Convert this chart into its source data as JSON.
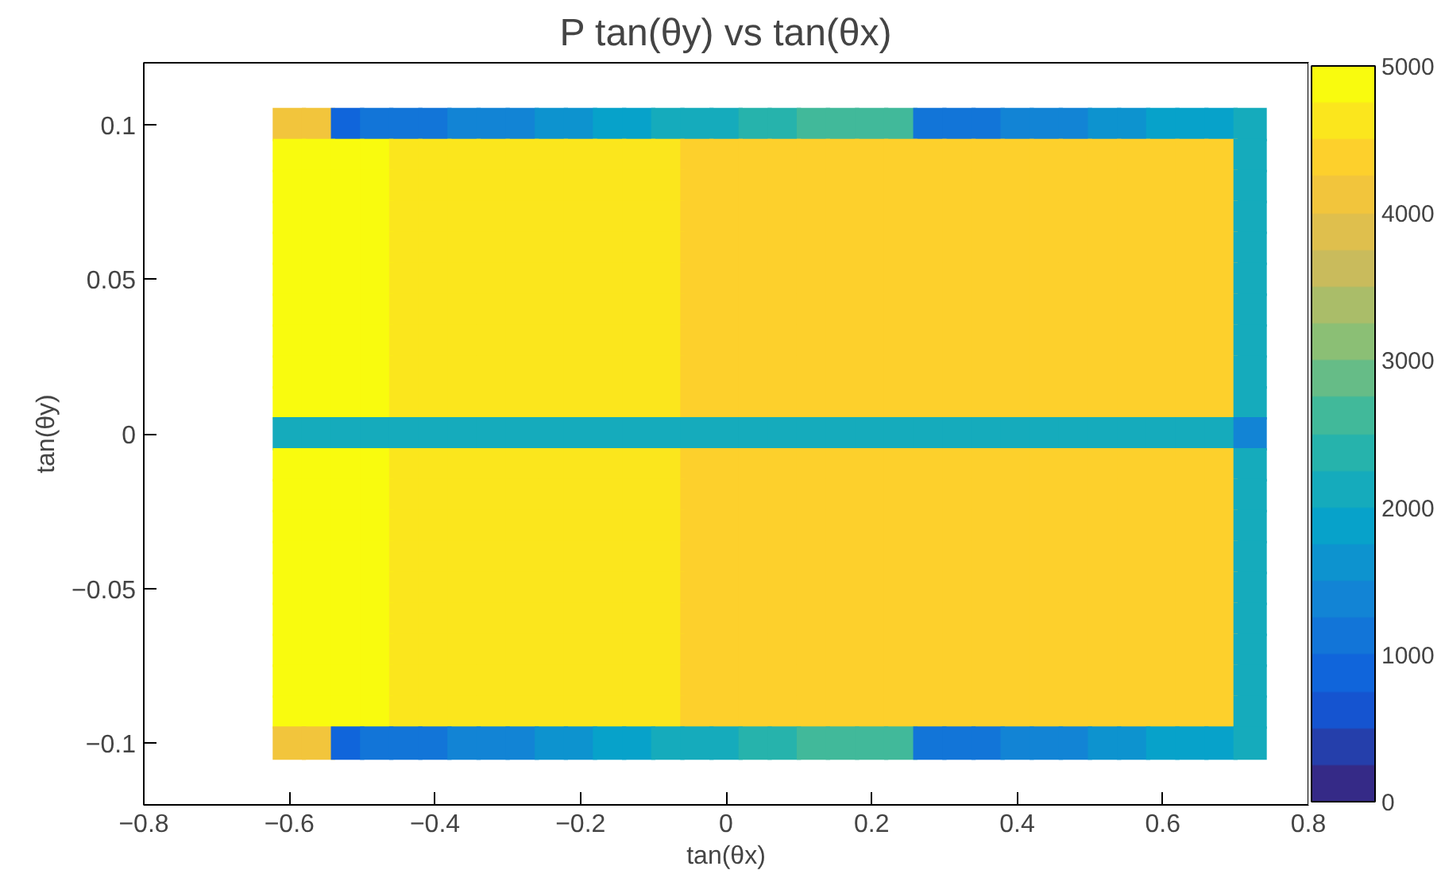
{
  "chart_data": {
    "type": "scatter",
    "marker": "square",
    "title": "P tan(θy) vs tan(θx)",
    "xlabel": "tan(θx)",
    "ylabel": "tan(θy)",
    "xlim": [
      -0.8,
      0.8
    ],
    "ylim": [
      -0.12,
      0.12
    ],
    "xticks": [
      {
        "value": -0.8,
        "label": "−0.8"
      },
      {
        "value": -0.6,
        "label": "−0.6"
      },
      {
        "value": -0.4,
        "label": "−0.4"
      },
      {
        "value": -0.2,
        "label": "−0.2"
      },
      0,
      0.2,
      0.4,
      0.6,
      0.8
    ],
    "yticks": [
      {
        "value": -0.1,
        "label": "−0.1"
      },
      {
        "value": -0.05,
        "label": "−0.05"
      },
      0,
      0.05,
      0.1
    ],
    "clim": [
      0,
      5000
    ],
    "cticks": [
      0,
      1000,
      2000,
      3000,
      4000,
      5000
    ],
    "grid": false,
    "x": [
      -0.6,
      -0.56,
      -0.52,
      -0.48,
      -0.44,
      -0.4,
      -0.36,
      -0.32,
      -0.28,
      -0.24,
      -0.2,
      -0.16,
      -0.12,
      -0.08,
      -0.04,
      0,
      0.04,
      0.08,
      0.12,
      0.16,
      0.2,
      0.24,
      0.28,
      0.32,
      0.36,
      0.4,
      0.44,
      0.48,
      0.52,
      0.56,
      0.6,
      0.64,
      0.68,
      0.72,
      -0.6,
      -0.56,
      -0.52,
      -0.48,
      -0.44,
      -0.4,
      -0.36,
      -0.32,
      -0.28,
      -0.24,
      -0.2,
      -0.16,
      -0.12,
      -0.08,
      -0.04,
      0,
      0.04,
      0.08,
      0.12,
      0.16,
      0.2,
      0.24,
      0.28,
      0.32,
      0.36,
      0.4,
      0.44,
      0.48,
      0.52,
      0.56,
      0.6,
      0.64,
      0.68,
      0.72,
      -0.6,
      -0.56,
      -0.52,
      -0.48,
      -0.44,
      -0.4,
      -0.36,
      -0.32,
      -0.28,
      -0.24,
      -0.2,
      -0.16,
      -0.12,
      -0.08,
      -0.04,
      0,
      0.04,
      0.08,
      0.12,
      0.16,
      0.2,
      0.24,
      0.28,
      0.32,
      0.36,
      0.4,
      0.44,
      0.48,
      0.52,
      0.56,
      0.6,
      0.64,
      0.68,
      0.72,
      -0.6,
      -0.56,
      -0.52,
      -0.48,
      -0.44,
      -0.4,
      -0.36,
      -0.32,
      -0.28,
      -0.24,
      -0.2,
      -0.16,
      -0.12,
      -0.08,
      -0.04,
      0,
      0.04,
      0.08,
      0.12,
      0.16,
      0.2,
      0.24,
      0.28,
      0.32,
      0.36,
      0.4,
      0.44,
      0.48,
      0.52,
      0.56,
      0.6,
      0.64,
      0.68,
      0.72,
      -0.6,
      -0.56,
      -0.52,
      -0.48,
      -0.44,
      -0.4,
      -0.36,
      -0.32,
      -0.28,
      -0.24,
      -0.2,
      -0.16,
      -0.12,
      -0.08,
      -0.04,
      0,
      0.04,
      0.08,
      0.12,
      0.16,
      0.2,
      0.24,
      0.28,
      0.32,
      0.36,
      0.4,
      0.44,
      0.48,
      0.52,
      0.56,
      0.6,
      0.64,
      0.68,
      0.72,
      -0.6,
      -0.56,
      -0.52,
      -0.48,
      -0.44,
      -0.4,
      -0.36,
      -0.32,
      -0.28,
      -0.24,
      -0.2,
      -0.16,
      -0.12,
      -0.08,
      -0.04,
      0,
      0.04,
      0.08,
      0.12,
      0.16,
      0.2,
      0.24,
      0.28,
      0.32,
      0.36,
      0.4,
      0.44,
      0.48,
      0.52,
      0.56,
      0.6,
      0.64,
      0.68,
      0.72,
      -0.6,
      -0.56,
      -0.52,
      -0.48,
      -0.44,
      -0.4,
      -0.36,
      -0.32,
      -0.28,
      -0.24,
      -0.2,
      -0.16,
      -0.12,
      -0.08,
      -0.04,
      0,
      0.04,
      0.08,
      0.12,
      0.16,
      0.2,
      0.24,
      0.28,
      0.32,
      0.36,
      0.4,
      0.44,
      0.48,
      0.52,
      0.56,
      0.6,
      0.64,
      0.68,
      0.72,
      -0.6,
      -0.56,
      -0.52,
      -0.48,
      -0.44,
      -0.4,
      -0.36,
      -0.32,
      -0.28,
      -0.24,
      -0.2,
      -0.16,
      -0.12,
      -0.08,
      -0.04,
      0,
      0.04,
      0.08,
      0.12,
      0.16,
      0.2,
      0.24,
      0.28,
      0.32,
      0.36,
      0.4,
      0.44,
      0.48,
      0.52,
      0.56,
      0.6,
      0.64,
      0.68,
      0.72,
      -0.6,
      -0.56,
      -0.52,
      -0.48,
      -0.44,
      -0.4,
      -0.36,
      -0.32,
      -0.28,
      -0.24,
      -0.2,
      -0.16,
      -0.12,
      -0.08,
      -0.04,
      0,
      0.04,
      0.08,
      0.12,
      0.16,
      0.2,
      0.24,
      0.28,
      0.32,
      0.36,
      0.4,
      0.44,
      0.48,
      0.52,
      0.56,
      0.6,
      0.64,
      0.68,
      0.72,
      -0.6,
      -0.56,
      -0.52,
      -0.48,
      -0.44,
      -0.4,
      -0.36,
      -0.32,
      -0.28,
      -0.24,
      -0.2,
      -0.16,
      -0.12,
      -0.08,
      -0.04,
      0,
      0.04,
      0.08,
      0.12,
      0.16,
      0.2,
      0.24,
      0.28,
      0.32,
      0.36,
      0.4,
      0.44,
      0.48,
      0.52,
      0.56,
      0.6,
      0.64,
      0.68,
      0.72,
      -0.6,
      -0.56,
      -0.52,
      -0.48,
      -0.44,
      -0.4,
      -0.36,
      -0.32,
      -0.28,
      -0.24,
      -0.2,
      -0.16,
      -0.12,
      -0.08,
      -0.04,
      0,
      0.04,
      0.08,
      0.12,
      0.16,
      0.2,
      0.24,
      0.28,
      0.32,
      0.36,
      0.4,
      0.44,
      0.48,
      0.52,
      0.56,
      0.6,
      0.64,
      0.68,
      0.72,
      -0.6,
      -0.56,
      -0.52,
      -0.48,
      -0.44,
      -0.4,
      -0.36,
      -0.32,
      -0.28,
      -0.24,
      -0.2,
      -0.16,
      -0.12,
      -0.08,
      -0.04,
      0,
      0.04,
      0.08,
      0.12,
      0.16,
      0.2,
      0.24,
      0.28,
      0.32,
      0.36,
      0.4,
      0.44,
      0.48,
      0.52,
      0.56,
      0.6,
      0.64,
      0.68,
      0.72,
      -0.6,
      -0.56,
      -0.52,
      -0.48,
      -0.44,
      -0.4,
      -0.36,
      -0.32,
      -0.28,
      -0.24,
      -0.2,
      -0.16,
      -0.12,
      -0.08,
      -0.04,
      0,
      0.04,
      0.08,
      0.12,
      0.16,
      0.2,
      0.24,
      0.28,
      0.32,
      0.36,
      0.4,
      0.44,
      0.48,
      0.52,
      0.56,
      0.6,
      0.64,
      0.68,
      0.72,
      -0.6,
      -0.56,
      -0.52,
      -0.48,
      -0.44,
      -0.4,
      -0.36,
      -0.32,
      -0.28,
      -0.24,
      -0.2,
      -0.16,
      -0.12,
      -0.08,
      -0.04,
      0,
      0.04,
      0.08,
      0.12,
      0.16,
      0.2,
      0.24,
      0.28,
      0.32,
      0.36,
      0.4,
      0.44,
      0.48,
      0.52,
      0.56,
      0.6,
      0.64,
      0.68,
      0.72,
      -0.6,
      -0.56,
      -0.52,
      -0.48,
      -0.44,
      -0.4,
      -0.36,
      -0.32,
      -0.28,
      -0.24,
      -0.2,
      -0.16,
      -0.12,
      -0.08,
      -0.04,
      0,
      0.04,
      0.08,
      0.12,
      0.16,
      0.2,
      0.24,
      0.28,
      0.32,
      0.36,
      0.4,
      0.44,
      0.48,
      0.52,
      0.56,
      0.6,
      0.64,
      0.68,
      0.72,
      -0.6,
      -0.56,
      -0.52,
      -0.48,
      -0.44,
      -0.4,
      -0.36,
      -0.32,
      -0.28,
      -0.24,
      -0.2,
      -0.16,
      -0.12,
      -0.08,
      -0.04,
      0,
      0.04,
      0.08,
      0.12,
      0.16,
      0.2,
      0.24,
      0.28,
      0.32,
      0.36,
      0.4,
      0.44,
      0.48,
      0.52,
      0.56,
      0.6,
      0.64,
      0.68,
      0.72,
      -0.6,
      -0.56,
      -0.52,
      -0.48,
      -0.44,
      -0.4,
      -0.36,
      -0.32,
      -0.28,
      -0.24,
      -0.2,
      -0.16,
      -0.12,
      -0.08,
      -0.04,
      0,
      0.04,
      0.08,
      0.12,
      0.16,
      0.2,
      0.24,
      0.28,
      0.32,
      0.36,
      0.4,
      0.44,
      0.48,
      0.52,
      0.56,
      0.6,
      0.64,
      0.68,
      0.72,
      -0.6,
      -0.56,
      -0.52,
      -0.48,
      -0.44,
      -0.4,
      -0.36,
      -0.32,
      -0.28,
      -0.24,
      -0.2,
      -0.16,
      -0.12,
      -0.08,
      -0.04,
      0,
      0.04,
      0.08,
      0.12,
      0.16,
      0.2,
      0.24,
      0.28,
      0.32,
      0.36,
      0.4,
      0.44,
      0.48,
      0.52,
      0.56,
      0.6,
      0.64,
      0.68,
      0.72,
      -0.6,
      -0.56,
      -0.52,
      -0.48,
      -0.44,
      -0.4,
      -0.36,
      -0.32,
      -0.28,
      -0.24,
      -0.2,
      -0.16,
      -0.12,
      -0.08,
      -0.04,
      0,
      0.04,
      0.08,
      0.12,
      0.16,
      0.2,
      0.24,
      0.28,
      0.32,
      0.36,
      0.4,
      0.44,
      0.48,
      0.52,
      0.56,
      0.6,
      0.64,
      0.68,
      0.72,
      -0.6,
      -0.56,
      -0.52,
      -0.48,
      -0.44,
      -0.4,
      -0.36,
      -0.32,
      -0.28,
      -0.24,
      -0.2,
      -0.16,
      -0.12,
      -0.08,
      -0.04,
      0,
      0.04,
      0.08,
      0.12,
      0.16,
      0.2,
      0.24,
      0.28,
      0.32,
      0.36,
      0.4,
      0.44,
      0.48,
      0.52,
      0.56,
      0.6,
      0.64,
      0.68,
      0.72,
      -0.6,
      -0.56,
      -0.52,
      -0.48,
      -0.44,
      -0.4,
      -0.36,
      -0.32,
      -0.28,
      -0.24,
      -0.2,
      -0.16,
      -0.12,
      -0.08,
      -0.04,
      0,
      0.04,
      0.08,
      0.12,
      0.16,
      0.2,
      0.24,
      0.28,
      0.32,
      0.36,
      0.4,
      0.44,
      0.48,
      0.52,
      0.56,
      0.6,
      0.64,
      0.68,
      0.72
    ],
    "values": [
      0.1,
      0.1,
      0.1,
      0.1,
      0.1,
      0.1,
      0.1,
      0.1,
      0.1,
      0.1,
      0.1,
      0.1,
      0.1,
      0.1,
      0.1,
      0.1,
      0.1,
      0.1,
      0.1,
      0.1,
      0.1,
      0.1,
      0.1,
      0.1,
      0.1,
      0.1,
      0.1,
      0.1,
      0.1,
      0.1,
      0.1,
      0.1,
      0.1,
      0.1,
      0.09,
      0.09,
      0.09,
      0.09,
      0.09,
      0.09,
      0.09,
      0.09,
      0.09,
      0.09,
      0.09,
      0.09,
      0.09,
      0.09,
      0.09,
      0.09,
      0.09,
      0.09,
      0.09,
      0.09,
      0.09,
      0.09,
      0.09,
      0.09,
      0.09,
      0.09,
      0.09,
      0.09,
      0.09,
      0.09,
      0.09,
      0.09,
      0.09,
      0.09,
      0.08,
      0.08,
      0.08,
      0.08,
      0.08,
      0.08,
      0.08,
      0.08,
      0.08,
      0.08,
      0.08,
      0.08,
      0.08,
      0.08,
      0.08,
      0.08,
      0.08,
      0.08,
      0.08,
      0.08,
      0.08,
      0.08,
      0.08,
      0.08,
      0.08,
      0.08,
      0.08,
      0.08,
      0.08,
      0.08,
      0.08,
      0.08,
      0.08,
      0.08,
      0.07,
      0.07,
      0.07,
      0.07,
      0.07,
      0.07,
      0.07,
      0.07,
      0.07,
      0.07,
      0.07,
      0.07,
      0.07,
      0.07,
      0.07,
      0.07,
      0.07,
      0.07,
      0.07,
      0.07,
      0.07,
      0.07,
      0.07,
      0.07,
      0.07,
      0.07,
      0.07,
      0.07,
      0.07,
      0.07,
      0.07,
      0.07,
      0.07,
      0.07,
      0.06,
      0.06,
      0.06,
      0.06,
      0.06,
      0.06,
      0.06,
      0.06,
      0.06,
      0.06,
      0.06,
      0.06,
      0.06,
      0.06,
      0.06,
      0.06,
      0.06,
      0.06,
      0.06,
      0.06,
      0.06,
      0.06,
      0.06,
      0.06,
      0.06,
      0.06,
      0.06,
      0.06,
      0.06,
      0.06,
      0.06,
      0.06,
      0.06,
      0.06,
      0.05,
      0.05,
      0.05,
      0.05,
      0.05,
      0.05,
      0.05,
      0.05,
      0.05,
      0.05,
      0.05,
      0.05,
      0.05,
      0.05,
      0.05,
      0.05,
      0.05,
      0.05,
      0.05,
      0.05,
      0.05,
      0.05,
      0.05,
      0.05,
      0.05,
      0.05,
      0.05,
      0.05,
      0.05,
      0.05,
      0.05,
      0.05,
      0.05,
      0.05,
      0.04,
      0.04,
      0.04,
      0.04,
      0.04,
      0.04,
      0.04,
      0.04,
      0.04,
      0.04,
      0.04,
      0.04,
      0.04,
      0.04,
      0.04,
      0.04,
      0.04,
      0.04,
      0.04,
      0.04,
      0.04,
      0.04,
      0.04,
      0.04,
      0.04,
      0.04,
      0.04,
      0.04,
      0.04,
      0.04,
      0.04,
      0.04,
      0.04,
      0.04,
      0.03,
      0.03,
      0.03,
      0.03,
      0.03,
      0.03,
      0.03,
      0.03,
      0.03,
      0.03,
      0.03,
      0.03,
      0.03,
      0.03,
      0.03,
      0.03,
      0.03,
      0.03,
      0.03,
      0.03,
      0.03,
      0.03,
      0.03,
      0.03,
      0.03,
      0.03,
      0.03,
      0.03,
      0.03,
      0.03,
      0.03,
      0.03,
      0.03,
      0.03,
      0.02,
      0.02,
      0.02,
      0.02,
      0.02,
      0.02,
      0.02,
      0.02,
      0.02,
      0.02,
      0.02,
      0.02,
      0.02,
      0.02,
      0.02,
      0.02,
      0.02,
      0.02,
      0.02,
      0.02,
      0.02,
      0.02,
      0.02,
      0.02,
      0.02,
      0.02,
      0.02,
      0.02,
      0.02,
      0.02,
      0.02,
      0.02,
      0.02,
      0.02,
      0.01,
      0.01,
      0.01,
      0.01,
      0.01,
      0.01,
      0.01,
      0.01,
      0.01,
      0.01,
      0.01,
      0.01,
      0.01,
      0.01,
      0.01,
      0.01,
      0.01,
      0.01,
      0.01,
      0.01,
      0.01,
      0.01,
      0.01,
      0.01,
      0.01,
      0.01,
      0.01,
      0.01,
      0.01,
      0.01,
      0.01,
      0.01,
      0.01,
      0.01,
      0,
      0,
      0,
      0,
      0,
      0,
      0,
      0,
      0,
      0,
      0,
      0,
      0,
      0,
      0,
      0,
      0,
      0,
      0,
      0,
      0,
      0,
      0,
      0,
      0,
      0,
      0,
      0,
      0,
      0,
      0,
      0,
      0,
      0,
      -0.01,
      -0.01,
      -0.01,
      -0.01,
      -0.01,
      -0.01,
      -0.01,
      -0.01,
      -0.01,
      -0.01,
      -0.01,
      -0.01,
      -0.01,
      -0.01,
      -0.01,
      -0.01,
      -0.01,
      -0.01,
      -0.01,
      -0.01,
      -0.01,
      -0.01,
      -0.01,
      -0.01,
      -0.01,
      -0.01,
      -0.01,
      -0.01,
      -0.01,
      -0.01,
      -0.01,
      -0.01,
      -0.01,
      -0.01,
      -0.02,
      -0.02,
      -0.02,
      -0.02,
      -0.02,
      -0.02,
      -0.02,
      -0.02,
      -0.02,
      -0.02,
      -0.02,
      -0.02,
      -0.02,
      -0.02,
      -0.02,
      -0.02,
      -0.02,
      -0.02,
      -0.02,
      -0.02,
      -0.02,
      -0.02,
      -0.02,
      -0.02,
      -0.02,
      -0.02,
      -0.02,
      -0.02,
      -0.02,
      -0.02,
      -0.02,
      -0.02,
      -0.02,
      -0.02,
      -0.03,
      -0.03,
      -0.03,
      -0.03,
      -0.03,
      -0.03,
      -0.03,
      -0.03,
      -0.03,
      -0.03,
      -0.03,
      -0.03,
      -0.03,
      -0.03,
      -0.03,
      -0.03,
      -0.03,
      -0.03,
      -0.03,
      -0.03,
      -0.03,
      -0.03,
      -0.03,
      -0.03,
      -0.03,
      -0.03,
      -0.03,
      -0.03,
      -0.03,
      -0.03,
      -0.03,
      -0.03,
      -0.03,
      -0.03,
      -0.04,
      -0.04,
      -0.04,
      -0.04,
      -0.04,
      -0.04,
      -0.04,
      -0.04,
      -0.04,
      -0.04,
      -0.04,
      -0.04,
      -0.04,
      -0.04,
      -0.04,
      -0.04,
      -0.04,
      -0.04,
      -0.04,
      -0.04,
      -0.04,
      -0.04,
      -0.04,
      -0.04,
      -0.04,
      -0.04,
      -0.04,
      -0.04,
      -0.04,
      -0.04,
      -0.04,
      -0.04,
      -0.04,
      -0.04,
      -0.05,
      -0.05,
      -0.05,
      -0.05,
      -0.05,
      -0.05,
      -0.05,
      -0.05,
      -0.05,
      -0.05,
      -0.05,
      -0.05,
      -0.05,
      -0.05,
      -0.05,
      -0.05,
      -0.05,
      -0.05,
      -0.05,
      -0.05,
      -0.05,
      -0.05,
      -0.05,
      -0.05,
      -0.05,
      -0.05,
      -0.05,
      -0.05,
      -0.05,
      -0.05,
      -0.05,
      -0.05,
      -0.05,
      -0.05,
      -0.06,
      -0.06,
      -0.06,
      -0.06,
      -0.06,
      -0.06,
      -0.06,
      -0.06,
      -0.06,
      -0.06,
      -0.06,
      -0.06,
      -0.06,
      -0.06,
      -0.06,
      -0.06,
      -0.06,
      -0.06,
      -0.06,
      -0.06,
      -0.06,
      -0.06,
      -0.06,
      -0.06,
      -0.06,
      -0.06,
      -0.06,
      -0.06,
      -0.06,
      -0.06,
      -0.06,
      -0.06,
      -0.06,
      -0.06,
      -0.07,
      -0.07,
      -0.07,
      -0.07,
      -0.07,
      -0.07,
      -0.07,
      -0.07,
      -0.07,
      -0.07,
      -0.07,
      -0.07,
      -0.07,
      -0.07,
      -0.07,
      -0.07,
      -0.07,
      -0.07,
      -0.07,
      -0.07,
      -0.07,
      -0.07,
      -0.07,
      -0.07,
      -0.07,
      -0.07,
      -0.07,
      -0.07,
      -0.07,
      -0.07,
      -0.07,
      -0.07,
      -0.07,
      -0.07,
      -0.08,
      -0.08,
      -0.08,
      -0.08,
      -0.08,
      -0.08,
      -0.08,
      -0.08,
      -0.08,
      -0.08,
      -0.08,
      -0.08,
      -0.08,
      -0.08,
      -0.08,
      -0.08,
      -0.08,
      -0.08,
      -0.08,
      -0.08,
      -0.08,
      -0.08,
      -0.08,
      -0.08,
      -0.08,
      -0.08,
      -0.08,
      -0.08,
      -0.08,
      -0.08,
      -0.08,
      -0.08,
      -0.08,
      -0.08,
      -0.09,
      -0.09,
      -0.09,
      -0.09,
      -0.09,
      -0.09,
      -0.09,
      -0.09,
      -0.09,
      -0.09,
      -0.09,
      -0.09,
      -0.09,
      -0.09,
      -0.09,
      -0.09,
      -0.09,
      -0.09,
      -0.09,
      -0.09,
      -0.09,
      -0.09,
      -0.09,
      -0.09,
      -0.09,
      -0.09,
      -0.09,
      -0.09,
      -0.09,
      -0.09,
      -0.09,
      -0.09,
      -0.09,
      -0.09,
      -0.1,
      -0.1,
      -0.1,
      -0.1,
      -0.1,
      -0.1,
      -0.1,
      -0.1,
      -0.1,
      -0.1,
      -0.1,
      -0.1,
      -0.1,
      -0.1,
      -0.1,
      -0.1,
      -0.1,
      -0.1,
      -0.1,
      -0.1,
      -0.1,
      -0.1,
      -0.1,
      -0.1,
      -0.1,
      -0.1,
      -0.1,
      -0.1,
      -0.1,
      -0.1,
      -0.1,
      -0.1,
      -0.1,
      -0.1
    ],
    "cvalues": [
      4200,
      4200,
      900,
      1000,
      1100,
      1200,
      1300,
      1400,
      1500,
      1600,
      1700,
      1800,
      1900,
      2000,
      2100,
      2200,
      2300,
      2400,
      2500,
      2500,
      2600,
      2600,
      1000,
      1100,
      1200,
      1300,
      1400,
      1500,
      1600,
      1700,
      1800,
      1900,
      1900,
      2000,
      4800,
      4800,
      4750,
      4750,
      4700,
      4700,
      4650,
      4650,
      4600,
      4600,
      4550,
      4550,
      4500,
      4500,
      4450,
      4450,
      4400,
      4400,
      4400,
      4350,
      4350,
      4350,
      4300,
      4300,
      4300,
      4300,
      4300,
      4300,
      4300,
      4300,
      4300,
      4300,
      4300,
      2100,
      4800,
      4800,
      4750,
      4750,
      4700,
      4700,
      4650,
      4650,
      4600,
      4600,
      4550,
      4550,
      4500,
      4500,
      4450,
      4450,
      4400,
      4400,
      4400,
      4350,
      4350,
      4350,
      4300,
      4300,
      4300,
      4300,
      4300,
      4300,
      4300,
      4300,
      4300,
      4300,
      4300,
      2100,
      4800,
      4800,
      4750,
      4750,
      4700,
      4700,
      4650,
      4650,
      4600,
      4600,
      4550,
      4550,
      4500,
      4500,
      4450,
      4450,
      4400,
      4400,
      4400,
      4350,
      4350,
      4350,
      4300,
      4300,
      4300,
      4300,
      4300,
      4300,
      4300,
      4300,
      4300,
      4300,
      4300,
      2100,
      4800,
      4800,
      4750,
      4750,
      4700,
      4700,
      4650,
      4650,
      4600,
      4600,
      4550,
      4550,
      4500,
      4500,
      4450,
      4450,
      4400,
      4400,
      4400,
      4350,
      4350,
      4350,
      4300,
      4300,
      4300,
      4300,
      4300,
      4300,
      4300,
      4300,
      4300,
      4300,
      4300,
      2100,
      4800,
      4800,
      4750,
      4750,
      4700,
      4700,
      4650,
      4650,
      4600,
      4600,
      4550,
      4550,
      4500,
      4500,
      4450,
      4450,
      4400,
      4400,
      4400,
      4350,
      4350,
      4350,
      4300,
      4300,
      4300,
      4300,
      4300,
      4300,
      4300,
      4300,
      4300,
      4300,
      4300,
      2100,
      4800,
      4800,
      4750,
      4750,
      4700,
      4700,
      4650,
      4650,
      4600,
      4600,
      4550,
      4550,
      4500,
      4500,
      4450,
      4450,
      4400,
      4400,
      4400,
      4350,
      4350,
      4350,
      4300,
      4300,
      4300,
      4300,
      4300,
      4300,
      4300,
      4300,
      4300,
      4300,
      4300,
      2100,
      4800,
      4800,
      4750,
      4750,
      4700,
      4700,
      4650,
      4650,
      4600,
      4600,
      4550,
      4550,
      4500,
      4500,
      4450,
      4450,
      4400,
      4400,
      4400,
      4350,
      4350,
      4350,
      4300,
      4300,
      4300,
      4300,
      4300,
      4300,
      4300,
      4300,
      4300,
      4300,
      4300,
      2100,
      4800,
      4800,
      4750,
      4750,
      4700,
      4700,
      4650,
      4650,
      4600,
      4600,
      4550,
      4550,
      4500,
      4500,
      4450,
      4450,
      4400,
      4400,
      4400,
      4350,
      4350,
      4350,
      4300,
      4300,
      4300,
      4300,
      4300,
      4300,
      4300,
      4300,
      4300,
      4300,
      4300,
      2100,
      4800,
      4800,
      4750,
      4750,
      4700,
      4700,
      4650,
      4650,
      4600,
      4600,
      4550,
      4550,
      4500,
      4500,
      4450,
      4450,
      4400,
      4400,
      4400,
      4350,
      4350,
      4350,
      4300,
      4300,
      4300,
      4300,
      4300,
      4300,
      4300,
      4300,
      4300,
      4300,
      4300,
      2100,
      2200,
      2200,
      2200,
      2200,
      2200,
      2200,
      2200,
      2200,
      2200,
      2200,
      2200,
      2200,
      2200,
      2200,
      2200,
      2200,
      2200,
      2200,
      2200,
      2200,
      2200,
      2200,
      2200,
      2200,
      2200,
      2200,
      2200,
      2200,
      2200,
      2200,
      2200,
      2200,
      2200,
      1500,
      4800,
      4800,
      4750,
      4750,
      4700,
      4700,
      4650,
      4650,
      4600,
      4600,
      4550,
      4550,
      4500,
      4500,
      4450,
      4450,
      4400,
      4400,
      4400,
      4350,
      4350,
      4350,
      4300,
      4300,
      4300,
      4300,
      4300,
      4300,
      4300,
      4300,
      4300,
      4300,
      4300,
      2100,
      4800,
      4800,
      4750,
      4750,
      4700,
      4700,
      4650,
      4650,
      4600,
      4600,
      4550,
      4550,
      4500,
      4500,
      4450,
      4450,
      4400,
      4400,
      4400,
      4350,
      4350,
      4350,
      4300,
      4300,
      4300,
      4300,
      4300,
      4300,
      4300,
      4300,
      4300,
      4300,
      4300,
      2100,
      4800,
      4800,
      4750,
      4750,
      4700,
      4700,
      4650,
      4650,
      4600,
      4600,
      4550,
      4550,
      4500,
      4500,
      4450,
      4450,
      4400,
      4400,
      4400,
      4350,
      4350,
      4350,
      4300,
      4300,
      4300,
      4300,
      4300,
      4300,
      4300,
      4300,
      4300,
      4300,
      4300,
      2100,
      4800,
      4800,
      4750,
      4750,
      4700,
      4700,
      4650,
      4650,
      4600,
      4600,
      4550,
      4550,
      4500,
      4500,
      4450,
      4450,
      4400,
      4400,
      4400,
      4350,
      4350,
      4350,
      4300,
      4300,
      4300,
      4300,
      4300,
      4300,
      4300,
      4300,
      4300,
      4300,
      4300,
      2100,
      4800,
      4800,
      4750,
      4750,
      4700,
      4700,
      4650,
      4650,
      4600,
      4600,
      4550,
      4550,
      4500,
      4500,
      4450,
      4450,
      4400,
      4400,
      4400,
      4350,
      4350,
      4350,
      4300,
      4300,
      4300,
      4300,
      4300,
      4300,
      4300,
      4300,
      4300,
      4300,
      4300,
      2100,
      4800,
      4800,
      4750,
      4750,
      4700,
      4700,
      4650,
      4650,
      4600,
      4600,
      4550,
      4550,
      4500,
      4500,
      4450,
      4450,
      4400,
      4400,
      4400,
      4350,
      4350,
      4350,
      4300,
      4300,
      4300,
      4300,
      4300,
      4300,
      4300,
      4300,
      4300,
      4300,
      4300,
      2100,
      4800,
      4800,
      4750,
      4750,
      4700,
      4700,
      4650,
      4650,
      4600,
      4600,
      4550,
      4550,
      4500,
      4500,
      4450,
      4450,
      4400,
      4400,
      4400,
      4350,
      4350,
      4350,
      4300,
      4300,
      4300,
      4300,
      4300,
      4300,
      4300,
      4300,
      4300,
      4300,
      4300,
      2100,
      4800,
      4800,
      4750,
      4750,
      4700,
      4700,
      4650,
      4650,
      4600,
      4600,
      4550,
      4550,
      4500,
      4500,
      4450,
      4450,
      4400,
      4400,
      4400,
      4350,
      4350,
      4350,
      4300,
      4300,
      4300,
      4300,
      4300,
      4300,
      4300,
      4300,
      4300,
      4300,
      4300,
      2100,
      4800,
      4800,
      4750,
      4750,
      4700,
      4700,
      4650,
      4650,
      4600,
      4600,
      4550,
      4550,
      4500,
      4500,
      4450,
      4450,
      4400,
      4400,
      4400,
      4350,
      4350,
      4350,
      4300,
      4300,
      4300,
      4300,
      4300,
      4300,
      4300,
      4300,
      4300,
      4300,
      4300,
      2100,
      4200,
      4200,
      900,
      1000,
      1100,
      1200,
      1300,
      1400,
      1500,
      1600,
      1700,
      1800,
      1900,
      2000,
      2100,
      2200,
      2300,
      2400,
      2500,
      2500,
      2600,
      2600,
      1000,
      1100,
      1200,
      1300,
      1400,
      1500,
      1600,
      1700,
      1800,
      1900,
      1900,
      2000
    ]
  }
}
